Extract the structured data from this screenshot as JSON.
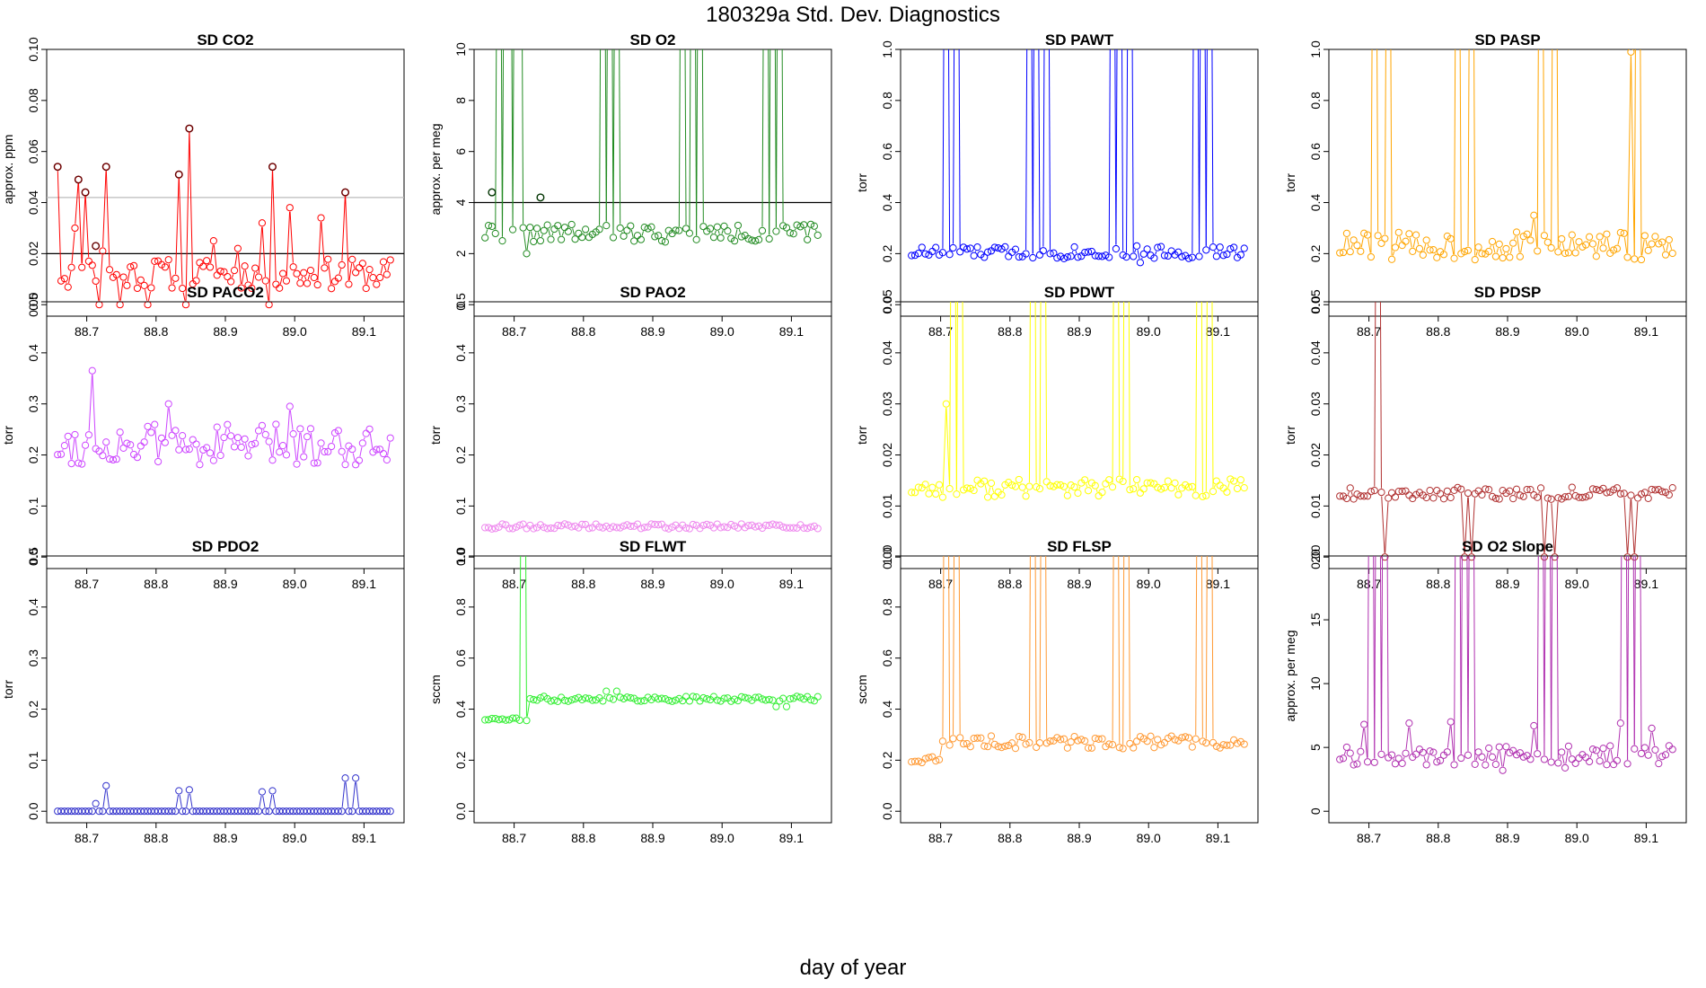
{
  "figure": {
    "title": "180329a   Std. Dev. Diagnostics",
    "xlabel": "day of year"
  },
  "chart_data": [
    {
      "type": "scatter",
      "title": "SD CO2",
      "ylabel": "approx. ppm",
      "color": "#ff0000",
      "ylim": [
        0,
        0.1
      ],
      "yticks": [
        "0.00",
        "0.02",
        "0.04",
        "0.06",
        "0.08",
        "0.10"
      ],
      "xlim": [
        88.65,
        89.15
      ],
      "xticks": [
        "88.7",
        "88.8",
        "88.9",
        "89.0",
        "89.1"
      ],
      "hlines": [
        {
          "y": 0.02,
          "color": "#000000"
        },
        {
          "y": 0.042,
          "color": "#bbbbbb"
        }
      ],
      "outliers": [
        {
          "x": 88.658,
          "y": 0.054
        },
        {
          "x": 88.688,
          "y": 0.049
        },
        {
          "x": 88.698,
          "y": 0.044
        },
        {
          "x": 88.713,
          "y": 0.023
        },
        {
          "x": 88.728,
          "y": 0.054
        },
        {
          "x": 88.833,
          "y": 0.051
        },
        {
          "x": 88.848,
          "y": 0.069
        },
        {
          "x": 88.968,
          "y": 0.054
        },
        {
          "x": 89.073,
          "y": 0.044
        }
      ],
      "outlier_color": "#660000",
      "base": 0.012,
      "noise": 0.006,
      "seed": 11,
      "spikes": [
        {
          "x": 88.658,
          "y": 0.054
        },
        {
          "x": 88.683,
          "y": 0.03
        },
        {
          "x": 88.688,
          "y": 0.049
        },
        {
          "x": 88.698,
          "y": 0.044
        },
        {
          "x": 88.703,
          "y": 0.017
        },
        {
          "x": 88.718,
          "y": 0.0
        },
        {
          "x": 88.723,
          "y": 0.021
        },
        {
          "x": 88.728,
          "y": 0.054
        },
        {
          "x": 88.748,
          "y": 0.0
        },
        {
          "x": 88.788,
          "y": 0.0
        },
        {
          "x": 88.798,
          "y": 0.017
        },
        {
          "x": 88.833,
          "y": 0.051
        },
        {
          "x": 88.843,
          "y": 0.0
        },
        {
          "x": 88.848,
          "y": 0.069
        },
        {
          "x": 88.883,
          "y": 0.025
        },
        {
          "x": 88.918,
          "y": 0.022
        },
        {
          "x": 88.953,
          "y": 0.032
        },
        {
          "x": 88.963,
          "y": 0.0
        },
        {
          "x": 88.968,
          "y": 0.054
        },
        {
          "x": 88.993,
          "y": 0.038
        },
        {
          "x": 89.038,
          "y": 0.034
        },
        {
          "x": 89.073,
          "y": 0.044
        },
        {
          "x": 89.078,
          "y": 0.008
        }
      ]
    },
    {
      "type": "scatter",
      "title": "SD O2",
      "ylabel": "approx. per meg",
      "color": "#228b22",
      "ylim": [
        0,
        10
      ],
      "yticks": [
        "0",
        "2",
        "4",
        "6",
        "8",
        "10"
      ],
      "xlim": [
        88.65,
        89.15
      ],
      "xticks": [
        "88.7",
        "88.8",
        "88.9",
        "89.0",
        "89.1"
      ],
      "hlines": [
        {
          "y": 4,
          "color": "#000000"
        }
      ],
      "outliers": [
        {
          "x": 88.668,
          "y": 4.4
        },
        {
          "x": 88.738,
          "y": 4.2
        }
      ],
      "outlier_color": "#003300",
      "base": 2.8,
      "noise": 0.35,
      "seed": 22,
      "spikes": [
        {
          "x": 88.663,
          "y": 3.1
        },
        {
          "x": 88.718,
          "y": 2.0
        },
        {
          "x": 88.953,
          "y": 2.8
        },
        {
          "x": 89.083,
          "y": 2.2
        }
      ],
      "upspikes": [
        88.653,
        88.678,
        88.688,
        88.693,
        88.703,
        88.708,
        88.828,
        88.838,
        88.848,
        88.943,
        88.958,
        88.968,
        89.063,
        89.073,
        89.083
      ]
    },
    {
      "type": "scatter",
      "title": "SD PAWT",
      "ylabel": "torr",
      "color": "#0000ff",
      "ylim": [
        0,
        1
      ],
      "yticks": [
        "0.0",
        "0.2",
        "0.4",
        "0.6",
        "0.8",
        "1.0"
      ],
      "xlim": [
        88.65,
        89.15
      ],
      "xticks": [
        "88.7",
        "88.8",
        "88.9",
        "89.0",
        "89.1"
      ],
      "hlines": [],
      "outliers": [],
      "base": 0.205,
      "noise": 0.025,
      "seed": 33,
      "spikes": [
        {
          "x": 88.988,
          "y": 0.165
        }
      ],
      "upspikes": [
        88.708,
        88.723,
        88.828,
        88.838,
        88.853,
        88.948,
        88.958,
        88.973,
        89.068,
        89.078,
        89.088
      ]
    },
    {
      "type": "scatter",
      "title": "SD PASP",
      "ylabel": "torr",
      "color": "#ffa500",
      "ylim": [
        0,
        1
      ],
      "yticks": [
        "0.0",
        "0.2",
        "0.4",
        "0.6",
        "0.8",
        "1.0"
      ],
      "xlim": [
        88.65,
        89.15
      ],
      "xticks": [
        "88.7",
        "88.8",
        "88.9",
        "89.0",
        "89.1"
      ],
      "hlines": [],
      "outliers": [],
      "base": 0.23,
      "noise": 0.055,
      "seed": 44,
      "spikes": [
        {
          "x": 89.078,
          "y": 0.99
        },
        {
          "x": 88.938,
          "y": 0.35
        }
      ],
      "upspikes": [
        88.708,
        88.728,
        88.828,
        88.848,
        88.948,
        88.968,
        89.088
      ]
    },
    {
      "type": "scatter",
      "title": "SD PACO2",
      "ylabel": "torr",
      "color": "#cc44ff",
      "ylim": [
        0,
        0.5
      ],
      "yticks": [
        "0.0",
        "0.1",
        "0.2",
        "0.3",
        "0.4",
        "0.5"
      ],
      "xlim": [
        88.65,
        89.15
      ],
      "xticks": [
        "88.7",
        "88.8",
        "88.9",
        "89.0",
        "89.1"
      ],
      "hlines": [],
      "outliers": [],
      "base": 0.22,
      "noise": 0.04,
      "seed": 55,
      "spikes": [
        {
          "x": 88.708,
          "y": 0.365
        },
        {
          "x": 88.818,
          "y": 0.3
        },
        {
          "x": 88.993,
          "y": 0.295
        }
      ],
      "upspikes": []
    },
    {
      "type": "scatter",
      "title": "SD PAO2",
      "ylabel": "torr",
      "color": "#ee88ee",
      "ylim": [
        0,
        0.5
      ],
      "yticks": [
        "0.0",
        "0.1",
        "0.2",
        "0.3",
        "0.4",
        "0.5"
      ],
      "xlim": [
        88.65,
        89.15
      ],
      "xticks": [
        "88.7",
        "88.8",
        "88.9",
        "89.0",
        "89.1"
      ],
      "hlines": [],
      "outliers": [],
      "base": 0.06,
      "noise": 0.005,
      "seed": 66,
      "spikes": [],
      "upspikes": []
    },
    {
      "type": "scatter",
      "title": "SD PDWT",
      "ylabel": "torr",
      "color": "#ffff00",
      "ylim": [
        0,
        0.05
      ],
      "yticks": [
        "0.00",
        "0.01",
        "0.02",
        "0.03",
        "0.04",
        "0.05"
      ],
      "xlim": [
        88.65,
        89.15
      ],
      "xticks": [
        "88.7",
        "88.8",
        "88.9",
        "89.0",
        "89.1"
      ],
      "hlines": [],
      "outliers": [],
      "base": 0.0135,
      "noise": 0.0018,
      "seed": 77,
      "spikes": [
        {
          "x": 88.708,
          "y": 0.03
        }
      ],
      "upspikes": [
        88.718,
        88.728,
        88.833,
        88.848,
        88.953,
        88.968,
        89.073,
        89.088
      ]
    },
    {
      "type": "scatter",
      "title": "SD PDSP",
      "ylabel": "torr",
      "color": "#b03030",
      "ylim": [
        0,
        0.05
      ],
      "yticks": [
        "0.00",
        "0.01",
        "0.02",
        "0.03",
        "0.04",
        "0.05"
      ],
      "xlim": [
        88.65,
        89.15
      ],
      "xticks": [
        "88.7",
        "88.8",
        "88.9",
        "89.0",
        "89.1"
      ],
      "hlines": [],
      "outliers": [],
      "base": 0.0125,
      "noise": 0.0012,
      "seed": 88,
      "spikes": [
        {
          "x": 88.723,
          "y": 0.0
        },
        {
          "x": 88.838,
          "y": 0.0
        },
        {
          "x": 88.848,
          "y": 0.0
        },
        {
          "x": 88.953,
          "y": 0.0
        },
        {
          "x": 88.968,
          "y": 0.0
        },
        {
          "x": 89.073,
          "y": 0.0
        },
        {
          "x": 89.083,
          "y": 0.0
        }
      ],
      "upspikes": [
        88.713
      ]
    },
    {
      "type": "scatter",
      "title": "SD PDO2",
      "ylabel": "torr",
      "color": "#3333cc",
      "ylim": [
        0,
        0.5
      ],
      "yticks": [
        "0.0",
        "0.1",
        "0.2",
        "0.3",
        "0.4",
        "0.5"
      ],
      "xlim": [
        88.65,
        89.15
      ],
      "xticks": [
        "88.7",
        "88.8",
        "88.9",
        "89.0",
        "89.1"
      ],
      "hlines": [],
      "outliers": [],
      "base": 0.0,
      "noise": 0.0,
      "seed": 99,
      "spikes": [
        {
          "x": 88.713,
          "y": 0.015
        },
        {
          "x": 88.728,
          "y": 0.05
        },
        {
          "x": 88.833,
          "y": 0.04
        },
        {
          "x": 88.848,
          "y": 0.042
        },
        {
          "x": 88.953,
          "y": 0.038
        },
        {
          "x": 88.968,
          "y": 0.04
        },
        {
          "x": 89.073,
          "y": 0.065
        },
        {
          "x": 89.088,
          "y": 0.065
        }
      ],
      "upspikes": []
    },
    {
      "type": "scatter",
      "title": "SD FLWT",
      "ylabel": "sccm",
      "color": "#33ee33",
      "ylim": [
        0,
        1
      ],
      "yticks": [
        "0.0",
        "0.2",
        "0.4",
        "0.6",
        "0.8",
        "1.0"
      ],
      "xlim": [
        88.65,
        89.15
      ],
      "xticks": [
        "88.7",
        "88.8",
        "88.9",
        "89.0",
        "89.1"
      ],
      "hlines": [],
      "outliers": [],
      "base": 0.44,
      "noise": 0.01,
      "seed": 111,
      "early": {
        "until": 88.72,
        "base": 0.36,
        "noise": 0.005
      },
      "spikes": [
        {
          "x": 88.833,
          "y": 0.47
        },
        {
          "x": 88.848,
          "y": 0.47
        },
        {
          "x": 89.078,
          "y": 0.41
        },
        {
          "x": 89.093,
          "y": 0.41
        }
      ],
      "upspikes": [
        88.713
      ]
    },
    {
      "type": "scatter",
      "title": "SD FLSP",
      "ylabel": "sccm",
      "color": "#ff9933",
      "ylim": [
        0,
        1
      ],
      "yticks": [
        "0.0",
        "0.2",
        "0.4",
        "0.6",
        "0.8",
        "1.0"
      ],
      "xlim": [
        88.65,
        89.15
      ],
      "xticks": [
        "88.7",
        "88.8",
        "88.9",
        "89.0",
        "89.1"
      ],
      "hlines": [],
      "outliers": [],
      "base": 0.27,
      "noise": 0.025,
      "seed": 122,
      "early": {
        "until": 88.7,
        "base": 0.2,
        "noise": 0.015
      },
      "spikes": [],
      "upspikes": [
        88.708,
        88.723,
        88.833,
        88.848,
        88.953,
        88.968,
        89.073,
        89.088
      ]
    },
    {
      "type": "scatter",
      "title": "SD O2 Slope",
      "ylabel": "approx. per meg",
      "color": "#b030b0",
      "ylim": [
        0,
        20
      ],
      "yticks": [
        "0",
        "5",
        "10",
        "15",
        "20"
      ],
      "xlim": [
        88.65,
        89.15
      ],
      "xticks": [
        "88.7",
        "88.8",
        "88.9",
        "89.0",
        "89.1"
      ],
      "hlines": [],
      "outliers": [],
      "base": 4.4,
      "noise": 0.8,
      "seed": 133,
      "spikes": [
        {
          "x": 88.693,
          "y": 6.8
        },
        {
          "x": 88.758,
          "y": 6.9
        },
        {
          "x": 88.818,
          "y": 7.0
        },
        {
          "x": 88.938,
          "y": 6.7
        },
        {
          "x": 89.063,
          "y": 6.9
        },
        {
          "x": 89.108,
          "y": 6.5
        },
        {
          "x": 88.893,
          "y": 3.2
        },
        {
          "x": 88.983,
          "y": 3.4
        }
      ],
      "upspikes": [
        88.703,
        88.713,
        88.723,
        88.828,
        88.838,
        88.848,
        88.948,
        88.958,
        88.968,
        89.068,
        89.078,
        89.088
      ]
    }
  ]
}
